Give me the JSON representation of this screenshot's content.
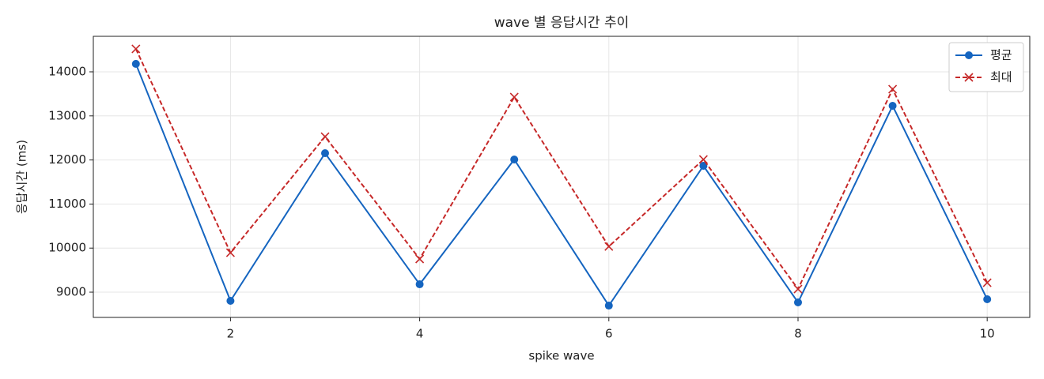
{
  "chart_data": {
    "type": "line",
    "title": "wave 별 응답시간 추이",
    "x_label": "spike wave",
    "y_label": "응답시간 (ms)",
    "x": [
      1,
      2,
      3,
      4,
      5,
      6,
      7,
      8,
      9,
      10
    ],
    "series": [
      {
        "name": "평균",
        "color": "#1565c0",
        "marker": "circle",
        "dash": "solid",
        "values": [
          14180,
          8803,
          12154,
          9179,
          12011,
          8695,
          11867,
          8767,
          13229,
          8839
        ]
      },
      {
        "name": "최대",
        "color": "#c62828",
        "marker": "x",
        "dash": "dashed",
        "values": [
          14520,
          9896,
          12530,
          9753,
          13427,
          10036,
          12011,
          9072,
          13606,
          9215
        ]
      }
    ],
    "xlim": [
      0.55,
      10.45
    ],
    "xticks": [
      2,
      4,
      6,
      8,
      10
    ],
    "ylim": [
      8427,
      14806
    ],
    "yticks": [
      9000,
      10000,
      11000,
      12000,
      13000,
      14000
    ],
    "grid": true,
    "legend": "upper right"
  }
}
